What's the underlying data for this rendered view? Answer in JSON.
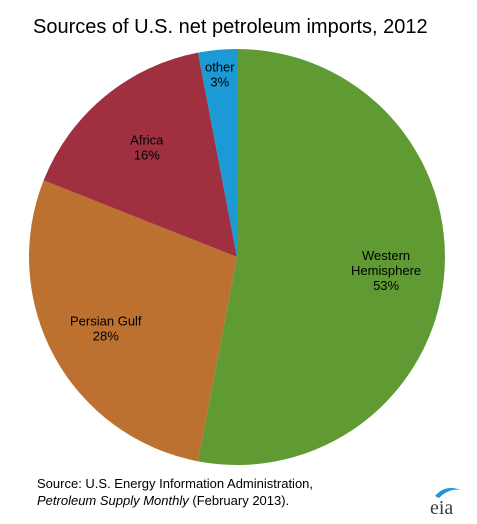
{
  "chart_data": {
    "type": "pie",
    "title": "Sources of U.S. net petroleum imports, 2012",
    "slices": [
      {
        "label": [
          "Western",
          "Hemisphere"
        ],
        "value": 53,
        "value_label": "53%",
        "color": "#5f9a33"
      },
      {
        "label": [
          "Persian Gulf"
        ],
        "value": 28,
        "value_label": "28%",
        "color": "#bd7130"
      },
      {
        "label": [
          "Africa"
        ],
        "value": 16,
        "value_label": "16%",
        "color": "#a0303f"
      },
      {
        "label": [
          "other"
        ],
        "value": 3,
        "value_label": "3%",
        "color": "#1b9ad6"
      }
    ],
    "start_angle_deg": 0,
    "direction": "clockwise",
    "legend": "none"
  },
  "source": {
    "prefix": "Source:  U.S. Energy Information Administration,",
    "publication": "Petroleum Supply Monthly",
    "suffix": " (February  2013)."
  },
  "logo": {
    "text": "eia"
  }
}
